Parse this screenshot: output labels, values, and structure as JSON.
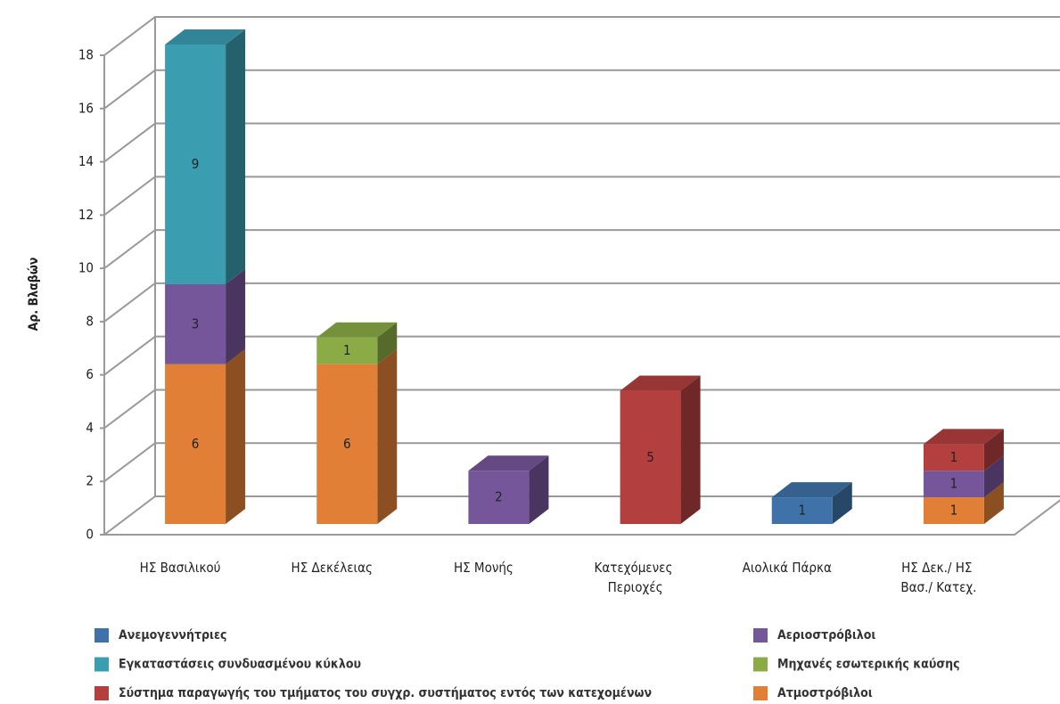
{
  "chart_data": {
    "type": "bar3d-stacked",
    "ylabel": "Αρ. Βλαβών",
    "categories": [
      "ΗΣ Βασιλικού",
      "ΗΣ Δεκέλειας",
      "ΗΣ Μονής",
      "Κατεχόμενες Περιοχές",
      "Αιολικά Πάρκα",
      "ΗΣ Δεκ./ ΗΣ Βασ./ Κατεχ."
    ],
    "series": [
      {
        "name": "Ατμοστρόβιλοι",
        "color": "#e07f35",
        "values": [
          6,
          6,
          null,
          null,
          null,
          1
        ]
      },
      {
        "name": "Αεριοστρόβιλοι",
        "color": "#76569a",
        "values": [
          3,
          null,
          2,
          null,
          null,
          1
        ]
      },
      {
        "name": "Μηχανές εσωτερικής καύσης",
        "color": "#8aab46",
        "values": [
          null,
          1,
          null,
          null,
          null,
          null
        ]
      },
      {
        "name": "Σύστημα παραγωγής του τμήματος του συγχρ. συστήματος εντός των κατεχομένων",
        "color": "#b3403f",
        "values": [
          null,
          null,
          null,
          5,
          null,
          1
        ]
      },
      {
        "name": "Εγκαταστάσεις συνδυασμένου κύκλου",
        "color": "#3a9db0",
        "values": [
          9,
          null,
          null,
          null,
          null,
          null
        ]
      },
      {
        "name": "Ανεμογεννήτριες",
        "color": "#3f72a8",
        "values": [
          null,
          null,
          null,
          null,
          1,
          null
        ]
      }
    ],
    "legend_order": [
      5,
      4,
      3,
      1,
      2,
      0
    ],
    "ylim": [
      0,
      18
    ],
    "yticks": [
      0,
      2,
      4,
      6,
      8,
      10,
      12,
      14,
      16,
      18
    ],
    "grid": true
  }
}
